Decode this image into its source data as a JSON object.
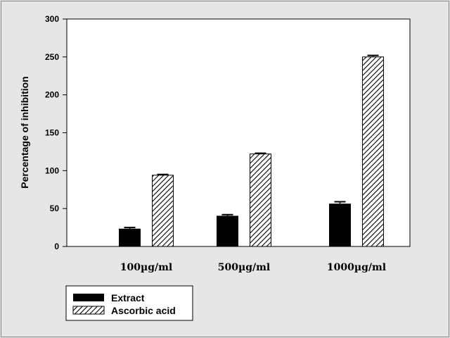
{
  "chart_data": {
    "type": "bar",
    "categories": [
      "100µg/ml",
      "500µg/ml",
      "1000µg/ml"
    ],
    "series": [
      {
        "name": "Extract",
        "values": [
          23,
          40,
          56
        ],
        "errors": [
          2,
          2,
          3
        ],
        "color": "#000000",
        "pattern": "solid"
      },
      {
        "name": "Ascorbic acid",
        "values": [
          94,
          122,
          250
        ],
        "errors": [
          1,
          1,
          2
        ],
        "color": "#ffffff",
        "pattern": "diagonal-hatch"
      }
    ],
    "title": "",
    "xlabel": "",
    "ylabel": "Percentage of inhibition",
    "ylim": [
      0,
      300
    ],
    "yticks": [
      0,
      50,
      100,
      150,
      200,
      250,
      300
    ],
    "grid": false,
    "legend": "bottom-left"
  }
}
